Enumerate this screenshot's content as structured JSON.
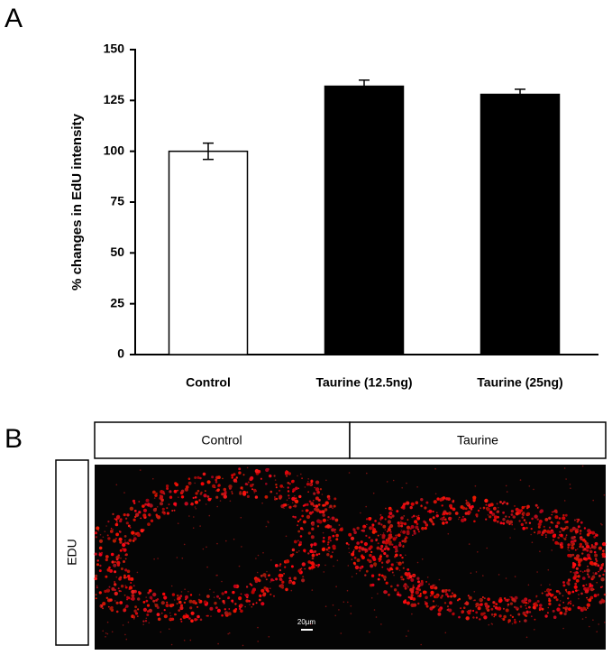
{
  "panel_labels": [
    "A",
    "B"
  ],
  "chart_data": {
    "type": "bar",
    "y_label": "% changes in EdU intensity",
    "categories": [
      "Control",
      "Taurine (12.5ng)",
      "Taurine (25ng)"
    ],
    "values": [
      100,
      132,
      128
    ],
    "errors": [
      4,
      3,
      2.5
    ],
    "colors": [
      "#ffffff",
      "#000000",
      "#000000"
    ],
    "ylim": [
      0,
      150
    ],
    "yticks": [
      0,
      25,
      50,
      75,
      100,
      125,
      150
    ]
  },
  "panel_b": {
    "columns": [
      "Control",
      "Taurine"
    ],
    "row_label": "EDU",
    "scale_bar": "20µm"
  }
}
